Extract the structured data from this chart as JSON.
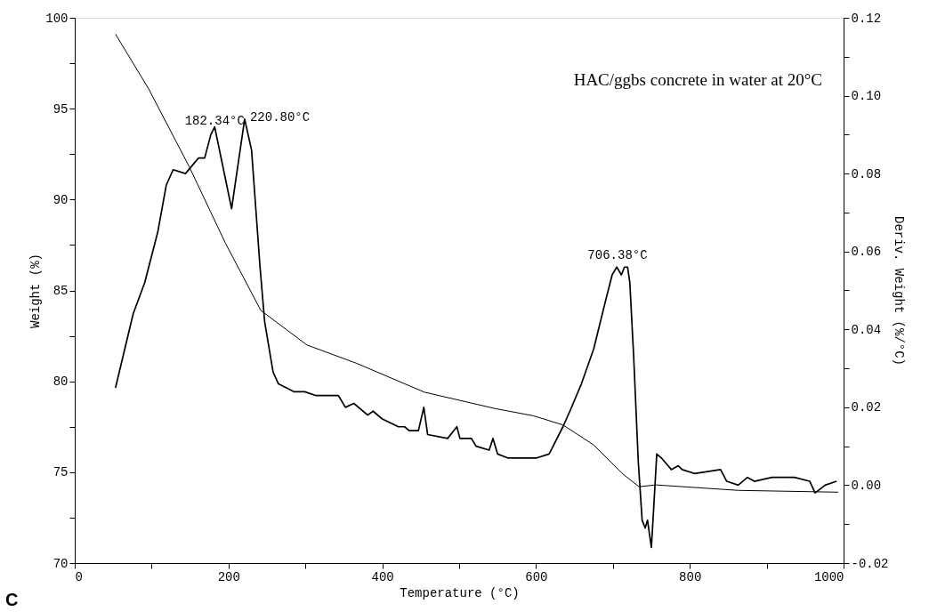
{
  "chart_data": {
    "type": "line",
    "xlabel": "Temperature (°C)",
    "ylabel": "Weight (%)",
    "y2label": "Deriv. Weight (%/°C)",
    "xlim": [
      0,
      1000
    ],
    "xticks": [
      0,
      {
        "value": 100,
        "label": null
      },
      200,
      {
        "value": 300,
        "label": null
      },
      400,
      {
        "value": 500,
        "label": null
      },
      600,
      {
        "value": 700,
        "label": null
      },
      800,
      {
        "value": 900,
        "label": null
      },
      1000
    ],
    "ylim": [
      70,
      100
    ],
    "yticks": [
      70,
      {
        "value": 72.5,
        "label": null
      },
      75,
      {
        "value": 77.5,
        "label": null
      },
      80,
      {
        "value": 82.5,
        "label": null
      },
      85,
      {
        "value": 87.5,
        "label": null
      },
      90,
      {
        "value": 92.5,
        "label": null
      },
      95,
      {
        "value": 97.5,
        "label": null
      },
      100
    ],
    "y2lim": [
      -0.02,
      0.12
    ],
    "y2ticks": [
      -0.02,
      {
        "value": -0.01,
        "label": null
      },
      {
        "value": 0,
        "label": "0.00"
      },
      {
        "value": 0.01,
        "label": null
      },
      0.02,
      {
        "value": 0.03,
        "label": null
      },
      0.04,
      {
        "value": 0.05,
        "label": null
      },
      0.06,
      {
        "value": 0.07,
        "label": null
      },
      0.08,
      {
        "value": 0.09,
        "label": null
      },
      {
        "value": 0.1,
        "label": "0.10"
      },
      {
        "value": 0.11,
        "label": null
      },
      0.12
    ],
    "grid": false,
    "marker": "none",
    "line_style": "solid",
    "series": [
      {
        "color": "#000000",
        "axis": "y",
        "x": [
          53,
          96,
          149,
          196,
          242,
          302,
          366,
          455,
          547,
          597,
          635,
          675,
          713,
          734,
          756,
          863,
          993
        ],
        "values": [
          99.1,
          96.1,
          91.8,
          87.6,
          83.9,
          82.0,
          81.0,
          79.4,
          78.5,
          78.1,
          77.6,
          76.5,
          74.9,
          74.2,
          74.3,
          74.0,
          73.9
        ]
      },
      {
        "color": "#000000",
        "axis": "y2",
        "x": [
          53,
          76,
          91,
          108,
          119,
          128,
          144,
          161,
          169,
          177,
          182,
          204,
          221,
          230,
          241,
          247,
          258,
          265,
          285,
          299,
          314,
          321,
          343,
          352,
          363,
          381,
          388,
          400,
          421,
          429,
          435,
          447,
          454,
          459,
          485,
          497,
          501,
          516,
          522,
          539,
          544,
          550,
          563,
          601,
          617,
          635,
          644,
          659,
          675,
          690,
          699,
          705,
          711,
          715,
          719,
          722,
          727,
          733,
          738,
          742,
          745,
          750,
          753,
          757,
          763,
          776,
          785,
          790,
          806,
          840,
          848,
          863,
          875,
          884,
          907,
          936,
          956,
          963,
          976,
          991
        ],
        "values": [
          0.025,
          0.044,
          0.052,
          0.065,
          0.077,
          0.081,
          0.08,
          0.084,
          0.084,
          0.09,
          0.092,
          0.071,
          0.094,
          0.086,
          0.056,
          0.042,
          0.029,
          0.026,
          0.024,
          0.024,
          0.023,
          0.023,
          0.023,
          0.02,
          0.021,
          0.018,
          0.019,
          0.017,
          0.015,
          0.015,
          0.014,
          0.014,
          0.02,
          0.013,
          0.012,
          0.015,
          0.012,
          0.012,
          0.01,
          0.009,
          0.012,
          0.008,
          0.007,
          0.007,
          0.008,
          0.015,
          0.019,
          0.026,
          0.035,
          0.047,
          0.054,
          0.056,
          0.054,
          0.056,
          0.056,
          0.052,
          0.033,
          0.006,
          -0.009,
          -0.011,
          -0.009,
          -0.016,
          -0.006,
          0.008,
          0.007,
          0.004,
          0.005,
          0.004,
          0.003,
          0.004,
          0.001,
          0.0,
          0.002,
          0.001,
          0.002,
          0.002,
          0.001,
          -0.002,
          0.0,
          0.001
        ]
      }
    ],
    "annotations": [
      {
        "text": "182.34°C",
        "x": 182,
        "y": 93.7
      },
      {
        "text": "220.80°C",
        "x": 221,
        "y": 94.5
      },
      {
        "text": "706.38°C",
        "x": 706,
        "y": 86.3
      },
      "HAC/ggbs concrete in water at 20°C",
      "C"
    ]
  }
}
